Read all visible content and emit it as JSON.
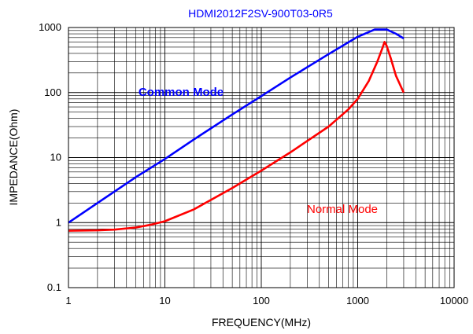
{
  "chart_data": {
    "type": "line",
    "title": "HDMI2012F2SV-900T03-0R5",
    "xlabel": "FREQUENCY(MHz)",
    "ylabel": "IMPEDANCE(Ohm)",
    "x_scale": "log",
    "y_scale": "log",
    "xlim": [
      1,
      10000
    ],
    "ylim": [
      0.1,
      1000
    ],
    "x_ticks": [
      "1",
      "10",
      "100",
      "1000",
      "10000"
    ],
    "y_ticks": [
      "0.1",
      "1",
      "10",
      "100",
      "1000"
    ],
    "grid": true,
    "colors": {
      "title": "#0000ff",
      "common": "#0000ff",
      "normal": "#ff0000"
    },
    "series": [
      {
        "name": "Common Mode",
        "color": "#0000ff",
        "x": [
          1,
          2,
          5,
          10,
          20,
          50,
          100,
          200,
          500,
          1000,
          1500,
          2000,
          2500,
          3000
        ],
        "y": [
          1.0,
          2.0,
          5.0,
          9.5,
          19,
          46,
          88,
          170,
          390,
          720,
          930,
          930,
          800,
          680
        ]
      },
      {
        "name": "Normal Mode",
        "color": "#ff0000",
        "x": [
          1,
          2,
          3,
          5,
          7,
          10,
          20,
          50,
          100,
          200,
          500,
          800,
          1000,
          1300,
          1600,
          1800,
          1900,
          2000,
          2200,
          2500,
          3000
        ],
        "y": [
          0.75,
          0.76,
          0.78,
          0.84,
          0.92,
          1.05,
          1.6,
          3.4,
          6.3,
          12,
          30,
          55,
          80,
          150,
          300,
          480,
          600,
          520,
          340,
          180,
          100
        ]
      }
    ]
  }
}
